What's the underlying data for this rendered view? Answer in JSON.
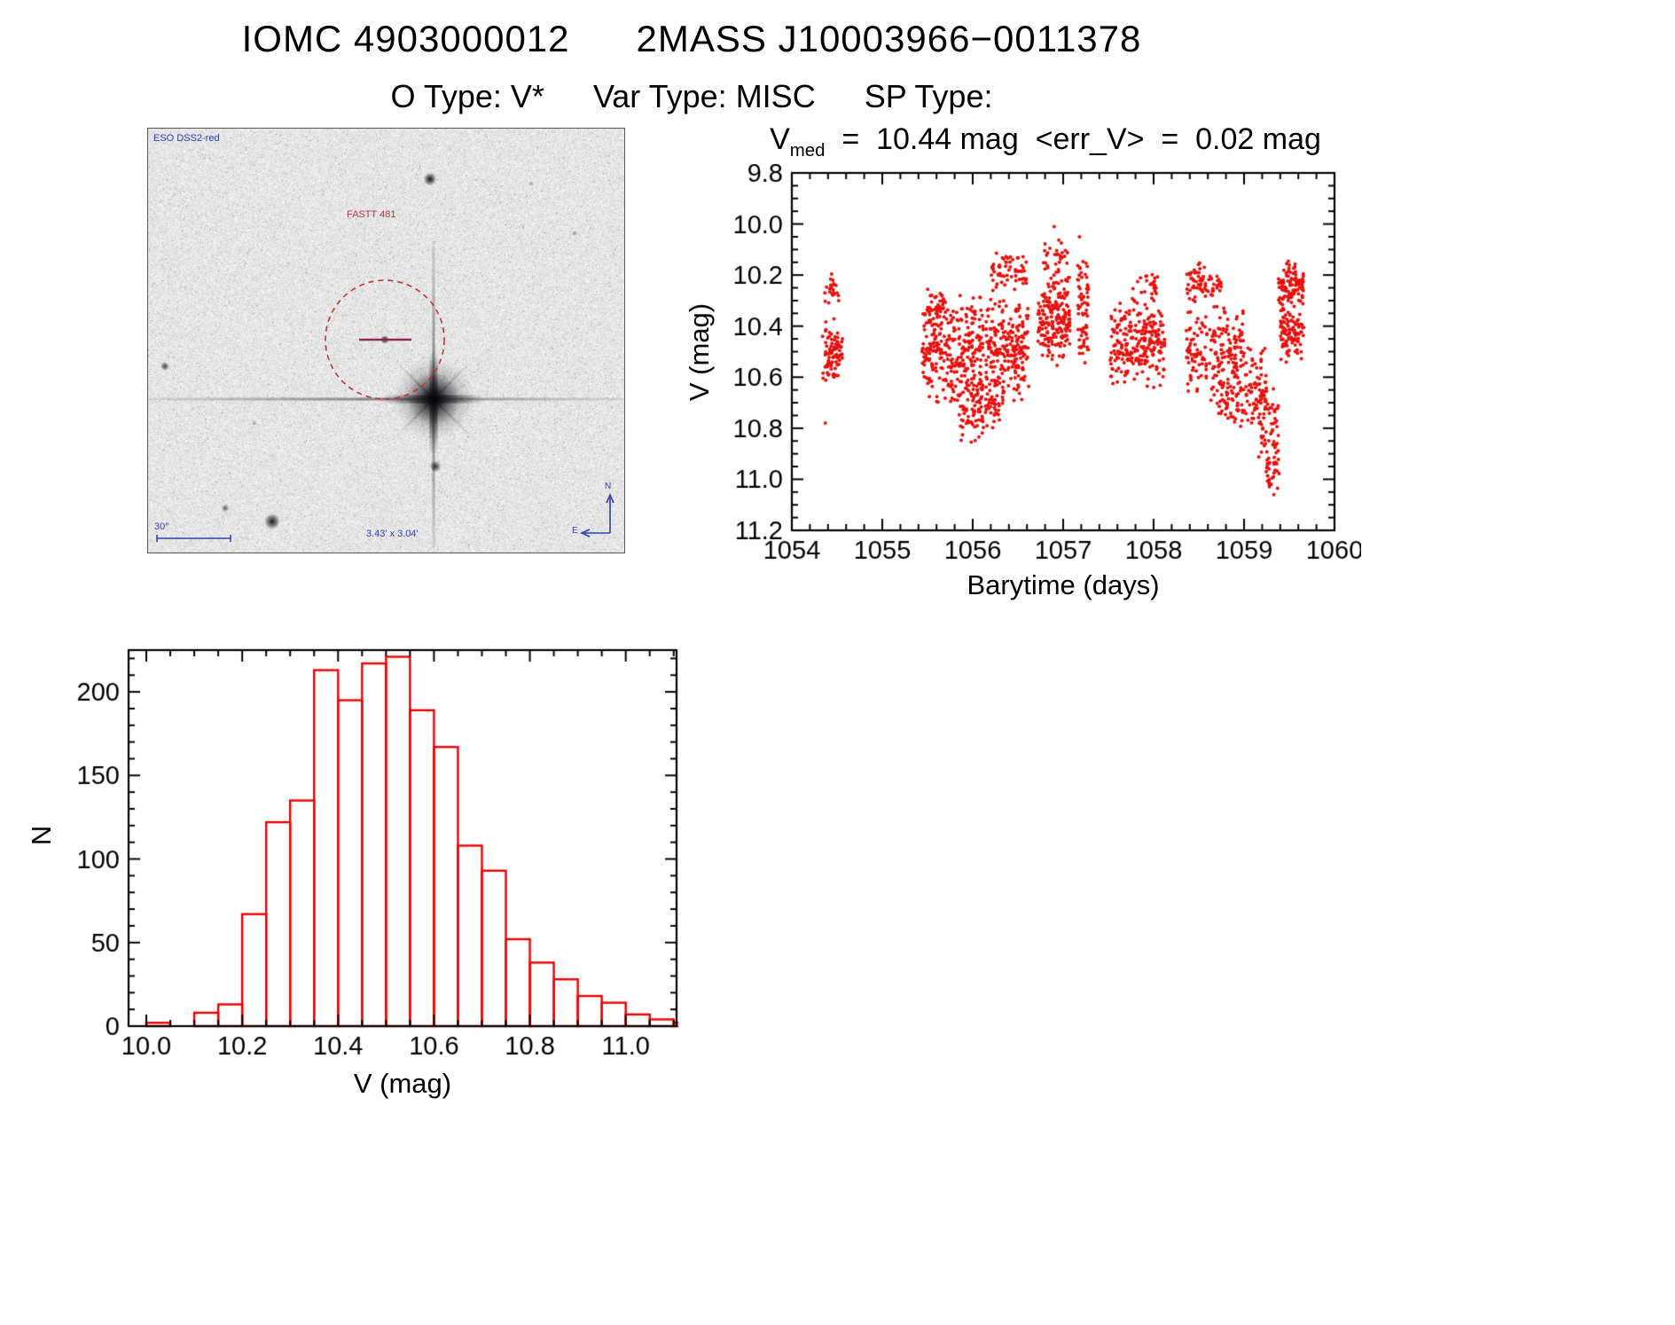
{
  "header": {
    "title_left": "IOMC 4903000012",
    "title_right": "2MASS J10003966−0011378",
    "subtitle": [
      "O Type: V*",
      "Var Type: MISC",
      "SP Type:"
    ]
  },
  "finding_chart": {
    "survey": "ESO DSS2-red",
    "star_name": "FASTT 481",
    "scale_text": "30″",
    "fov_text": "3.43' x 3.04'",
    "compass_n": "N",
    "compass_e": "E",
    "marker_color": "#c23434",
    "crosshair_color": "#8c2a5a",
    "annotation_blue": "#2f3fae",
    "annotation_red": "#b5373d"
  },
  "lightcurve": {
    "stat_v": "V",
    "stat_sub": "med",
    "stat_rest": "  =  10.44 mag  <err_V>  =  0.02 mag"
  },
  "chart_data": [
    {
      "type": "scatter",
      "title": "V_med = 10.44 mag <err_V> = 0.02 mag",
      "v_med_mag": 10.44,
      "err_v_mag": 0.02,
      "xlabel": "Barytime (days)",
      "ylabel": "V (mag)",
      "xlim": [
        1054,
        1060
      ],
      "y_top": 9.8,
      "y_bottom": 11.2,
      "y_inverted_magnitude_axis": true,
      "grid": false,
      "x_ticks": [
        1054,
        1055,
        1056,
        1057,
        1058,
        1059,
        1060
      ],
      "x_tick_labels": [
        "1054",
        "1055",
        "1056",
        "1057",
        "1058",
        "1059",
        "1060"
      ],
      "y_ticks": [
        9.8,
        10.0,
        10.2,
        10.4,
        10.6,
        10.8,
        11.0,
        11.2
      ],
      "y_tick_labels": [
        "9.8",
        "10.0",
        "10.2",
        "10.4",
        "10.6",
        "10.8",
        "11.0",
        "11.2"
      ],
      "x_minor": 0.2,
      "y_minor": 0.05,
      "point_color": "#e8100c",
      "clusters": [
        {
          "x": [
            1054.34,
            1054.56
          ],
          "v": [
            10.36,
            10.66
          ],
          "n": 85
        },
        {
          "x": [
            1054.36,
            1054.52
          ],
          "v": [
            10.18,
            10.34
          ],
          "n": 22
        },
        {
          "x": [
            1055.44,
            1056.12
          ],
          "v": [
            10.26,
            10.72
          ],
          "n": 300
        },
        {
          "x": [
            1055.85,
            1056.12
          ],
          "v": [
            10.55,
            10.88
          ],
          "n": 70
        },
        {
          "x": [
            1055.44,
            1055.7
          ],
          "v": [
            10.24,
            10.4
          ],
          "n": 40
        },
        {
          "x": [
            1056.14,
            1056.62
          ],
          "v": [
            10.28,
            10.72
          ],
          "n": 220
        },
        {
          "x": [
            1056.2,
            1056.6
          ],
          "v": [
            10.1,
            10.28
          ],
          "n": 60
        },
        {
          "x": [
            1056.14,
            1056.35
          ],
          "v": [
            10.6,
            10.82
          ],
          "n": 40
        },
        {
          "x": [
            1056.72,
            1057.08
          ],
          "v": [
            10.15,
            10.58
          ],
          "n": 200
        },
        {
          "x": [
            1056.78,
            1057.05
          ],
          "v": [
            10.06,
            10.18
          ],
          "n": 25
        },
        {
          "x": [
            1057.16,
            1057.28
          ],
          "v": [
            10.08,
            10.6
          ],
          "n": 70
        },
        {
          "x": [
            1057.52,
            1058.12
          ],
          "v": [
            10.27,
            10.66
          ],
          "n": 250
        },
        {
          "x": [
            1057.75,
            1058.05
          ],
          "v": [
            10.18,
            10.3
          ],
          "n": 25
        },
        {
          "x": [
            1058.36,
            1059.0
          ],
          "v": [
            10.3,
            10.72
          ],
          "n": 200
        },
        {
          "x": [
            1058.36,
            1058.75
          ],
          "v": [
            10.15,
            10.32
          ],
          "n": 70
        },
        {
          "x": [
            1058.7,
            1059.0
          ],
          "v": [
            10.6,
            10.82
          ],
          "n": 50
        },
        {
          "x": [
            1059.0,
            1059.25
          ],
          "v": [
            10.45,
            10.85
          ],
          "n": 80
        },
        {
          "x": [
            1059.15,
            1059.38
          ],
          "v": [
            10.6,
            11.0
          ],
          "n": 55
        },
        {
          "x": [
            1059.24,
            1059.4
          ],
          "v": [
            10.85,
            11.08
          ],
          "n": 25
        },
        {
          "x": [
            1059.38,
            1059.66
          ],
          "v": [
            10.12,
            10.35
          ],
          "n": 100
        },
        {
          "x": [
            1059.4,
            1059.66
          ],
          "v": [
            10.3,
            10.56
          ],
          "n": 100
        }
      ],
      "outliers": [
        [
          1054.37,
          10.78
        ],
        [
          1056.9,
          10.01
        ],
        [
          1057.18,
          10.05
        ],
        [
          1059.33,
          11.06
        ],
        [
          1059.3,
          11.02
        ]
      ]
    },
    {
      "type": "histogram",
      "xlabel": "V (mag)",
      "ylabel": "N",
      "bin_start": 10.0,
      "bin_width": 0.05,
      "values": [
        2,
        0,
        8,
        13,
        67,
        122,
        135,
        213,
        195,
        217,
        221,
        189,
        167,
        108,
        93,
        52,
        38,
        28,
        18,
        14,
        7,
        4,
        2
      ],
      "xlim": [
        9.963,
        11.106
      ],
      "ylim": [
        0,
        225
      ],
      "grid": false,
      "x_ticks": [
        10.0,
        10.2,
        10.4,
        10.6,
        10.8,
        11.0
      ],
      "x_tick_labels": [
        "10.0",
        "10.2",
        "10.4",
        "10.6",
        "10.8",
        "11.0"
      ],
      "y_ticks": [
        0,
        50,
        100,
        150,
        200
      ],
      "y_tick_labels": [
        "0",
        "50",
        "100",
        "150",
        "200"
      ],
      "x_minor": 0.05,
      "y_minor": 10,
      "bar_color": "#ee0000"
    }
  ]
}
